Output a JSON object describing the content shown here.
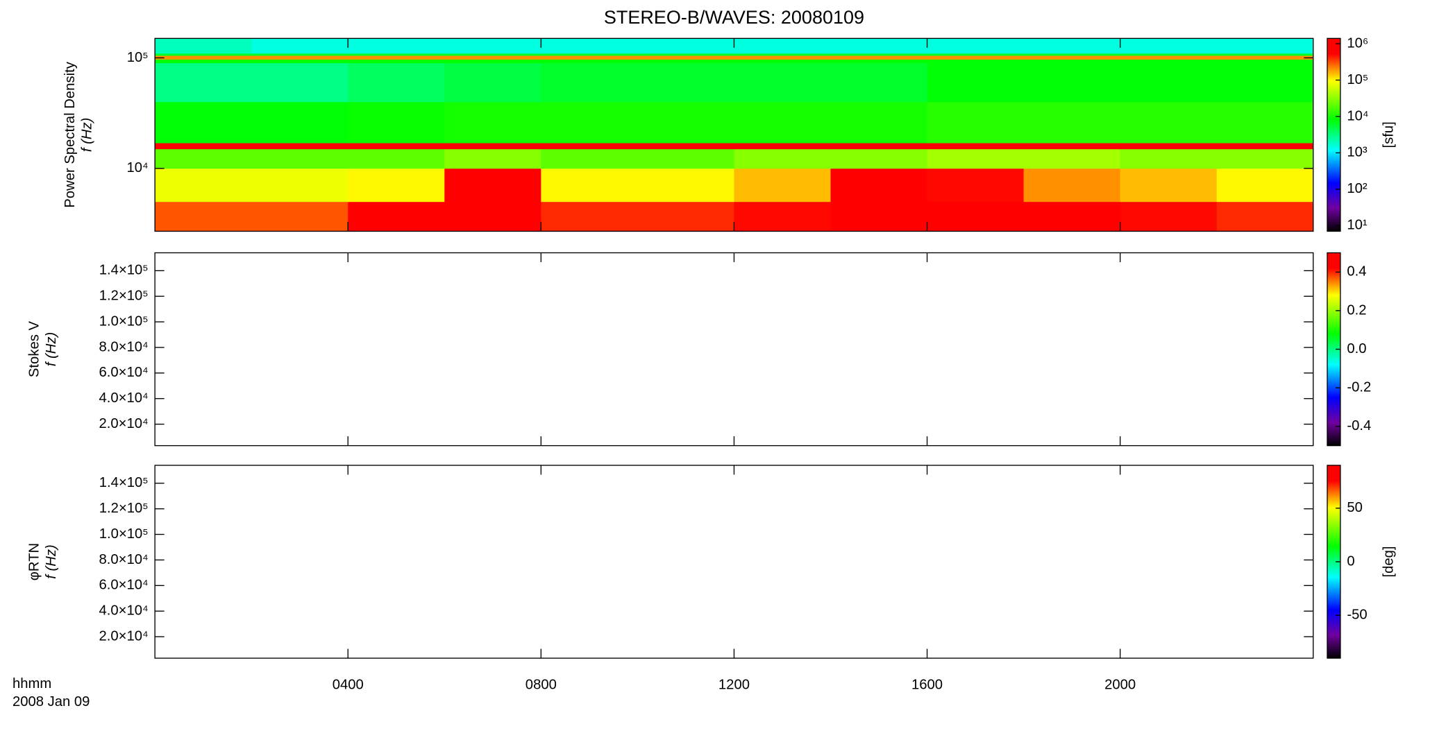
{
  "chart_data": [
    {
      "type": "heatmap",
      "title": "STEREO-B/WAVES: 20080109",
      "ylabel": "Power Spectral Density",
      "ylabel2": "f (Hz)",
      "zlabel": "[sfu]",
      "ylog": true,
      "zlog": true,
      "colormap": "rainbow",
      "ylim": [
        2700,
        150000
      ],
      "yticks": [
        {
          "value": 10000,
          "label": "10⁴"
        },
        {
          "value": 100000,
          "label": "10⁵"
        }
      ],
      "zlim": [
        7,
        1400000
      ],
      "zticks": [
        {
          "value": 10,
          "label": "10¹"
        },
        {
          "value": 100,
          "label": "10²"
        },
        {
          "value": 1000,
          "label": "10³"
        },
        {
          "value": 10000,
          "label": "10⁴"
        },
        {
          "value": 100000,
          "label": "10⁵"
        },
        {
          "value": 1000000,
          "label": "10⁶"
        }
      ],
      "xbins": [
        0,
        2,
        4,
        6,
        8,
        10,
        12,
        14,
        16,
        18,
        20,
        22,
        24
      ],
      "ybins": [
        2700,
        5000,
        10000,
        15000,
        17000,
        40000,
        90000,
        97000,
        105000,
        110000,
        150000
      ],
      "values": [
        [
          300000,
          300000,
          600000,
          1000000,
          400000,
          400000,
          500000,
          1000000,
          800000,
          600000,
          500000,
          400000
        ],
        [
          80000,
          80000,
          100000,
          600000,
          100000,
          100000,
          150000,
          800000,
          500000,
          200000,
          150000,
          100000
        ],
        [
          20000,
          20000,
          20000,
          30000,
          20000,
          20000,
          30000,
          30000,
          40000,
          40000,
          30000,
          30000
        ],
        [
          1000000,
          1000000,
          1000000,
          1000000,
          1000000,
          1000000,
          1000000,
          1000000,
          1000000,
          1000000,
          1000000,
          1000000
        ],
        [
          8000,
          8000,
          9000,
          10000,
          10000,
          10000,
          10000,
          10000,
          12000,
          12000,
          12000,
          12000
        ],
        [
          3000,
          3000,
          4000,
          5000,
          6000,
          6000,
          6000,
          6000,
          8000,
          8000,
          8000,
          8000
        ],
        [
          8000,
          8000,
          8000,
          8000,
          8000,
          8000,
          8000,
          8000,
          8000,
          8000,
          8000,
          8000
        ],
        [
          200000,
          200000,
          200000,
          200000,
          200000,
          200000,
          200000,
          200000,
          200000,
          200000,
          200000,
          200000
        ],
        [
          6000,
          6000,
          6000,
          6000,
          6000,
          6000,
          6000,
          6000,
          6000,
          6000,
          6000,
          6000
        ],
        [
          2000,
          1500,
          1500,
          1500,
          1500,
          1500,
          1500,
          1500,
          1500,
          1500,
          1500,
          1500
        ]
      ]
    },
    {
      "type": "heatmap",
      "ylabel": "Stokes V",
      "ylabel2": "f (Hz)",
      "colormap": "rainbow",
      "ylim": [
        3200,
        154000
      ],
      "yticks": [
        {
          "value": 20000,
          "label": "2.0×10⁴"
        },
        {
          "value": 40000,
          "label": "4.0×10⁴"
        },
        {
          "value": 60000,
          "label": "6.0×10⁴"
        },
        {
          "value": 80000,
          "label": "8.0×10⁴"
        },
        {
          "value": 100000,
          "label": "1.0×10⁵"
        },
        {
          "value": 120000,
          "label": "1.2×10⁵"
        },
        {
          "value": 140000,
          "label": "1.4×10⁵"
        }
      ],
      "zlim": [
        -0.5,
        0.5
      ],
      "zticks": [
        -0.4,
        -0.2,
        {
          "value": 0,
          "label": "0.0"
        },
        0.2,
        0.4
      ]
    },
    {
      "type": "heatmap",
      "ylabel": "φRTN",
      "ylabel2": "f (Hz)",
      "zlabel": "[deg]",
      "colormap": "rainbow",
      "ylim": [
        3200,
        154000
      ],
      "yticks": [
        {
          "value": 20000,
          "label": "2.0×10⁴"
        },
        {
          "value": 40000,
          "label": "4.0×10⁴"
        },
        {
          "value": 60000,
          "label": "6.0×10⁴"
        },
        {
          "value": 80000,
          "label": "8.0×10⁴"
        },
        {
          "value": 100000,
          "label": "1.0×10⁵"
        },
        {
          "value": 120000,
          "label": "1.2×10⁵"
        },
        {
          "value": 140000,
          "label": "1.4×10⁵"
        }
      ],
      "zlim": [
        -90,
        90
      ],
      "zticks": [
        -50,
        0,
        50
      ],
      "xlim": [
        0,
        24
      ],
      "xticks": [
        {
          "value": 4,
          "label": "0400"
        },
        {
          "value": 8,
          "label": "0800"
        },
        {
          "value": 12,
          "label": "1200"
        },
        {
          "value": 16,
          "label": "1600"
        },
        {
          "value": 20,
          "label": "2000"
        }
      ],
      "xlabel": "hhmm",
      "xlabel2": "2008 Jan 09"
    }
  ]
}
